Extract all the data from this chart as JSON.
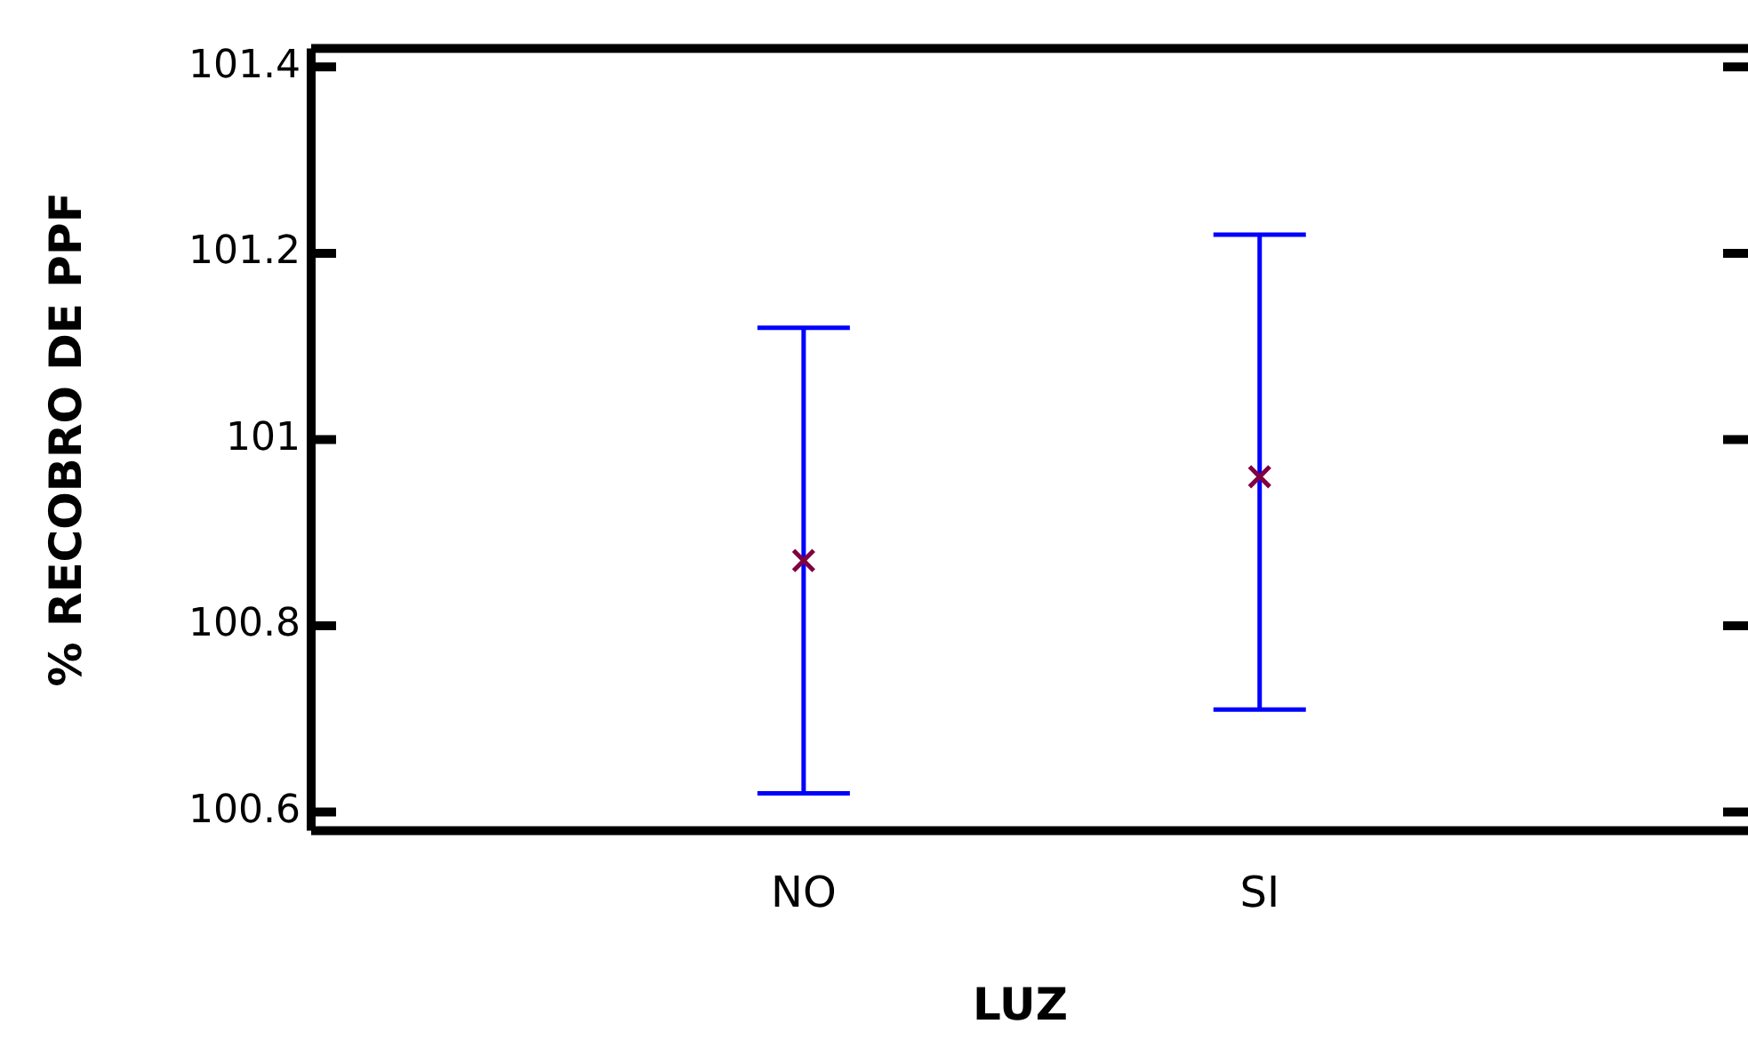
{
  "chart_data": {
    "type": "scatter",
    "xlabel": "LUZ",
    "ylabel": "% RECOBRO DE PPF",
    "categories": [
      "NO",
      "SI"
    ],
    "values": [
      100.87,
      100.96
    ],
    "color": "#800040",
    "errors": [
      [
        100.62,
        101.12
      ],
      [
        100.71,
        101.22
      ]
    ],
    "ylim": [
      100.58,
      101.42
    ],
    "yticks": [
      100.6,
      100.8,
      101,
      101.2,
      101.4
    ],
    "marker": "cross",
    "grid": false,
    "legend": false
  }
}
